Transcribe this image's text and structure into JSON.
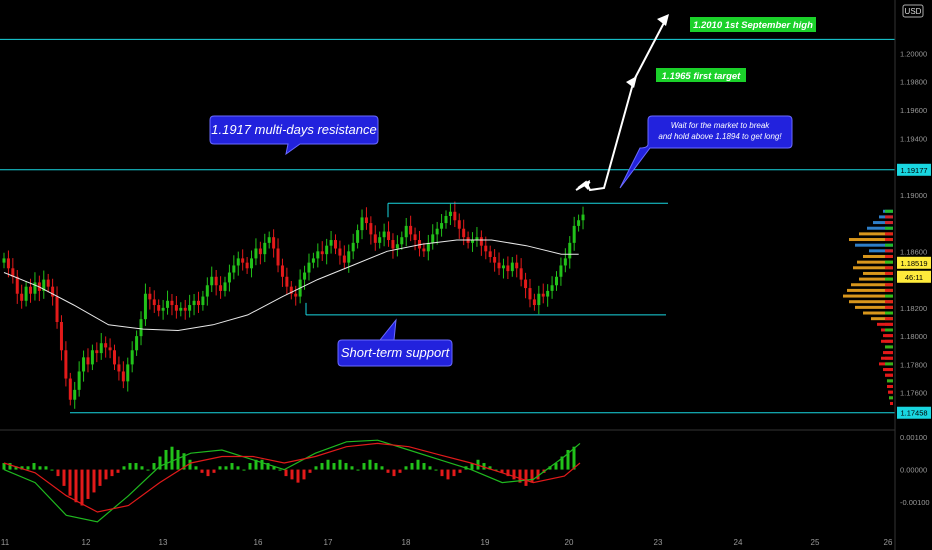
{
  "chart_data": {
    "type": "candlestick",
    "instrument": "EURUSD",
    "currency_label": "USD",
    "colors": {
      "background": "#000000",
      "bull": "#22c21a",
      "bear": "#e31a1a",
      "moving_average": "#e8e8e8",
      "level_line": "#19d6e0",
      "annotation_box": "#2222dd",
      "target_box": "#1bd12a",
      "arrow": "#ffffff",
      "macd_line": "#1fb81f",
      "signal_line": "#e01a1a",
      "volume_profile_high": "#2e7ec8",
      "volume_profile_mid": "#d8961c"
    },
    "x_axis": {
      "ticks": [
        "11",
        "12",
        "13",
        "16",
        "17",
        "18",
        "19",
        "20",
        "23",
        "24",
        "25",
        "26"
      ]
    },
    "y_axis": {
      "min": 1.1735,
      "max": 1.2035,
      "ticks": [
        "1.20000",
        "1.19800",
        "1.19600",
        "1.19400",
        "1.19000",
        "1.18600",
        "1.18400",
        "1.18200",
        "1.18000",
        "1.17800",
        "1.17600"
      ]
    },
    "price_labels": [
      {
        "text": "1.19177",
        "value": 1.19177,
        "style": "level"
      },
      {
        "text": "1.18519",
        "value": 1.18519,
        "style": "current"
      },
      {
        "text": "46:11",
        "value": 1.1842,
        "style": "timer"
      },
      {
        "text": "1.17458",
        "value": 1.17458,
        "style": "level"
      }
    ],
    "price_series": {
      "moving_average_close_points": [
        [
          0,
          1.1845
        ],
        [
          20,
          1.1835
        ],
        [
          40,
          1.1822
        ],
        [
          60,
          1.1808
        ],
        [
          80,
          1.1805
        ],
        [
          100,
          1.1804
        ],
        [
          120,
          1.1808
        ],
        [
          140,
          1.1815
        ],
        [
          160,
          1.1828
        ],
        [
          180,
          1.184
        ],
        [
          200,
          1.185
        ],
        [
          220,
          1.186
        ],
        [
          240,
          1.1865
        ],
        [
          260,
          1.1868
        ],
        [
          280,
          1.1868
        ],
        [
          300,
          1.1864
        ],
        [
          320,
          1.1858
        ],
        [
          330,
          1.1858
        ]
      ],
      "closes": [
        1.1855,
        1.1848,
        1.1842,
        1.183,
        1.1825,
        1.1835,
        1.183,
        1.1838,
        1.1832,
        1.184,
        1.1835,
        1.1828,
        1.181,
        1.179,
        1.177,
        1.1755,
        1.1762,
        1.1775,
        1.1785,
        1.178,
        1.179,
        1.1788,
        1.1795,
        1.1792,
        1.179,
        1.178,
        1.1775,
        1.1768,
        1.178,
        1.179,
        1.18,
        1.1812,
        1.183,
        1.1826,
        1.1822,
        1.1818,
        1.182,
        1.1825,
        1.1822,
        1.1818,
        1.182,
        1.1818,
        1.1822,
        1.1825,
        1.1822,
        1.1828,
        1.1836,
        1.1842,
        1.1836,
        1.1832,
        1.1838,
        1.1845,
        1.185,
        1.1855,
        1.1852,
        1.1848,
        1.1855,
        1.1862,
        1.1858,
        1.1866,
        1.187,
        1.1862,
        1.185,
        1.1842,
        1.1835,
        1.183,
        1.1828,
        1.184,
        1.1845,
        1.1852,
        1.1855,
        1.186,
        1.1858,
        1.1864,
        1.1868,
        1.1862,
        1.1857,
        1.1852,
        1.186,
        1.1866,
        1.1875,
        1.1884,
        1.188,
        1.1872,
        1.1866,
        1.187,
        1.1874,
        1.1868,
        1.1862,
        1.1865,
        1.187,
        1.1878,
        1.1872,
        1.1868,
        1.1862,
        1.186,
        1.1866,
        1.1872,
        1.1876,
        1.188,
        1.1885,
        1.1888,
        1.1882,
        1.1876,
        1.187,
        1.1866,
        1.1868,
        1.187,
        1.1864,
        1.186,
        1.1856,
        1.1852,
        1.1848,
        1.185,
        1.1846,
        1.1852,
        1.1848,
        1.184,
        1.1834,
        1.1826,
        1.1822,
        1.183,
        1.1828,
        1.1832,
        1.1836,
        1.1842,
        1.185,
        1.1855,
        1.1866,
        1.1878,
        1.1882,
        1.1886
      ]
    },
    "horizontal_levels": [
      {
        "name": "multi-days resistance",
        "value": 1.19177
      },
      {
        "name": "top level",
        "value": 1.201
      }
    ],
    "range_box": {
      "top": 1.1894,
      "bottom": 1.1815
    },
    "bottom_support": {
      "value": 1.17458
    },
    "annotations": [
      {
        "text": "1.1917 multi-days resistance",
        "style": "blue-callout"
      },
      {
        "text": "Short-term support",
        "style": "blue-callout"
      },
      {
        "text": "Wait for the market to break",
        "line2": "and hold above 1.1894 to get long!",
        "style": "blue-callout-small"
      },
      {
        "text": "1.2010 1st September high",
        "style": "green-tag"
      },
      {
        "text": "1.1965 first target",
        "style": "green-tag"
      }
    ],
    "macd": {
      "y_ticks": [
        "0.00100",
        "0.00000",
        "-0.00100"
      ],
      "y_min": -0.00185,
      "y_max": 0.00115,
      "histogram": [
        0.0002,
        0.0002,
        0.0001,
        0.0001,
        0.0001,
        0.0002,
        0.0001,
        0.0001,
        0.0,
        -0.0002,
        -0.0005,
        -0.0008,
        -0.001,
        -0.0011,
        -0.0009,
        -0.0007,
        -0.0005,
        -0.0003,
        -0.0002,
        -0.0001,
        0.0001,
        0.0002,
        0.0002,
        0.0001,
        0.0,
        0.0002,
        0.0004,
        0.0006,
        0.0007,
        0.0006,
        0.0005,
        0.0003,
        0.0001,
        -0.0001,
        -0.0002,
        -0.0001,
        0.0001,
        0.0001,
        0.0002,
        0.0001,
        0.0,
        0.0002,
        0.0003,
        0.0003,
        0.0002,
        0.0001,
        0.0,
        -0.0002,
        -0.0003,
        -0.0004,
        -0.0003,
        -0.0001,
        0.0001,
        0.0002,
        0.0003,
        0.0002,
        0.0003,
        0.0002,
        0.0001,
        0.0,
        0.0002,
        0.0003,
        0.0002,
        0.0001,
        -0.0001,
        -0.0002,
        -0.0001,
        0.0001,
        0.0002,
        0.0003,
        0.0002,
        0.0001,
        0.0,
        -0.0002,
        -0.0003,
        -0.0002,
        -0.0001,
        0.0001,
        0.0002,
        0.0003,
        0.0002,
        0.0001,
        0.0,
        -0.0001,
        -0.0002,
        -0.0003,
        -0.0004,
        -0.0005,
        -0.0004,
        -0.0003,
        -0.0001,
        0.0001,
        0.0002,
        0.0004,
        0.0006,
        0.0007
      ],
      "macd_points": [
        [
          0,
          0.0
        ],
        [
          20,
          -0.0004
        ],
        [
          40,
          -0.0014
        ],
        [
          60,
          -0.0016
        ],
        [
          80,
          -0.0008
        ],
        [
          100,
          0.0001
        ],
        [
          120,
          0.0005
        ],
        [
          140,
          0.0006
        ],
        [
          160,
          0.0003
        ],
        [
          180,
          0.0
        ],
        [
          200,
          0.0005
        ],
        [
          220,
          0.00085
        ],
        [
          240,
          0.0009
        ],
        [
          260,
          0.0006
        ],
        [
          280,
          0.0003
        ],
        [
          300,
          0.0
        ],
        [
          320,
          -0.0004
        ],
        [
          340,
          -0.0003
        ],
        [
          360,
          0.0004
        ],
        [
          370,
          0.0008
        ]
      ],
      "signal_points": [
        [
          0,
          0.0002
        ],
        [
          20,
          -0.0001
        ],
        [
          40,
          -0.0008
        ],
        [
          60,
          -0.0013
        ],
        [
          80,
          -0.0011
        ],
        [
          100,
          -0.0004
        ],
        [
          120,
          0.0002
        ],
        [
          140,
          0.0004
        ],
        [
          160,
          0.0004
        ],
        [
          180,
          0.0002
        ],
        [
          200,
          0.0004
        ],
        [
          220,
          0.0007
        ],
        [
          240,
          0.0008
        ],
        [
          260,
          0.0007
        ],
        [
          280,
          0.00045
        ],
        [
          300,
          0.0002
        ],
        [
          320,
          -0.0001
        ],
        [
          340,
          -0.0004
        ],
        [
          360,
          -0.0002
        ],
        [
          370,
          0.0002
        ]
      ]
    },
    "volume_profile": [
      {
        "price": 1.1888,
        "vol": 10,
        "tone": "high"
      },
      {
        "price": 1.1884,
        "vol": 14,
        "tone": "high"
      },
      {
        "price": 1.188,
        "vol": 20,
        "tone": "high"
      },
      {
        "price": 1.1876,
        "vol": 26,
        "tone": "high"
      },
      {
        "price": 1.1872,
        "vol": 34,
        "tone": "mid"
      },
      {
        "price": 1.1868,
        "vol": 44,
        "tone": "mid"
      },
      {
        "price": 1.1864,
        "vol": 38,
        "tone": "high"
      },
      {
        "price": 1.186,
        "vol": 24,
        "tone": "high"
      },
      {
        "price": 1.1856,
        "vol": 30,
        "tone": "mid"
      },
      {
        "price": 1.1852,
        "vol": 36,
        "tone": "mid"
      },
      {
        "price": 1.1848,
        "vol": 40,
        "tone": "mid"
      },
      {
        "price": 1.1844,
        "vol": 30,
        "tone": "mid"
      },
      {
        "price": 1.184,
        "vol": 34,
        "tone": "mid"
      },
      {
        "price": 1.1836,
        "vol": 42,
        "tone": "mid"
      },
      {
        "price": 1.1832,
        "vol": 46,
        "tone": "mid"
      },
      {
        "price": 1.1828,
        "vol": 50,
        "tone": "mid"
      },
      {
        "price": 1.1824,
        "vol": 44,
        "tone": "mid"
      },
      {
        "price": 1.182,
        "vol": 38,
        "tone": "mid"
      },
      {
        "price": 1.1816,
        "vol": 30,
        "tone": "mid"
      },
      {
        "price": 1.1812,
        "vol": 22,
        "tone": "mid"
      },
      {
        "price": 1.1808,
        "vol": 16,
        "tone": "low"
      },
      {
        "price": 1.1804,
        "vol": 12,
        "tone": "low"
      },
      {
        "price": 1.18,
        "vol": 10,
        "tone": "low"
      },
      {
        "price": 1.1796,
        "vol": 12,
        "tone": "low"
      },
      {
        "price": 1.1792,
        "vol": 8,
        "tone": "low"
      },
      {
        "price": 1.1788,
        "vol": 10,
        "tone": "low"
      },
      {
        "price": 1.1784,
        "vol": 12,
        "tone": "low"
      },
      {
        "price": 1.178,
        "vol": 14,
        "tone": "low"
      },
      {
        "price": 1.1776,
        "vol": 10,
        "tone": "low"
      },
      {
        "price": 1.1772,
        "vol": 8,
        "tone": "low"
      },
      {
        "price": 1.1768,
        "vol": 6,
        "tone": "low"
      },
      {
        "price": 1.1764,
        "vol": 6,
        "tone": "low"
      },
      {
        "price": 1.176,
        "vol": 5,
        "tone": "low"
      },
      {
        "price": 1.1756,
        "vol": 4,
        "tone": "low"
      },
      {
        "price": 1.1752,
        "vol": 3,
        "tone": "low"
      }
    ]
  }
}
